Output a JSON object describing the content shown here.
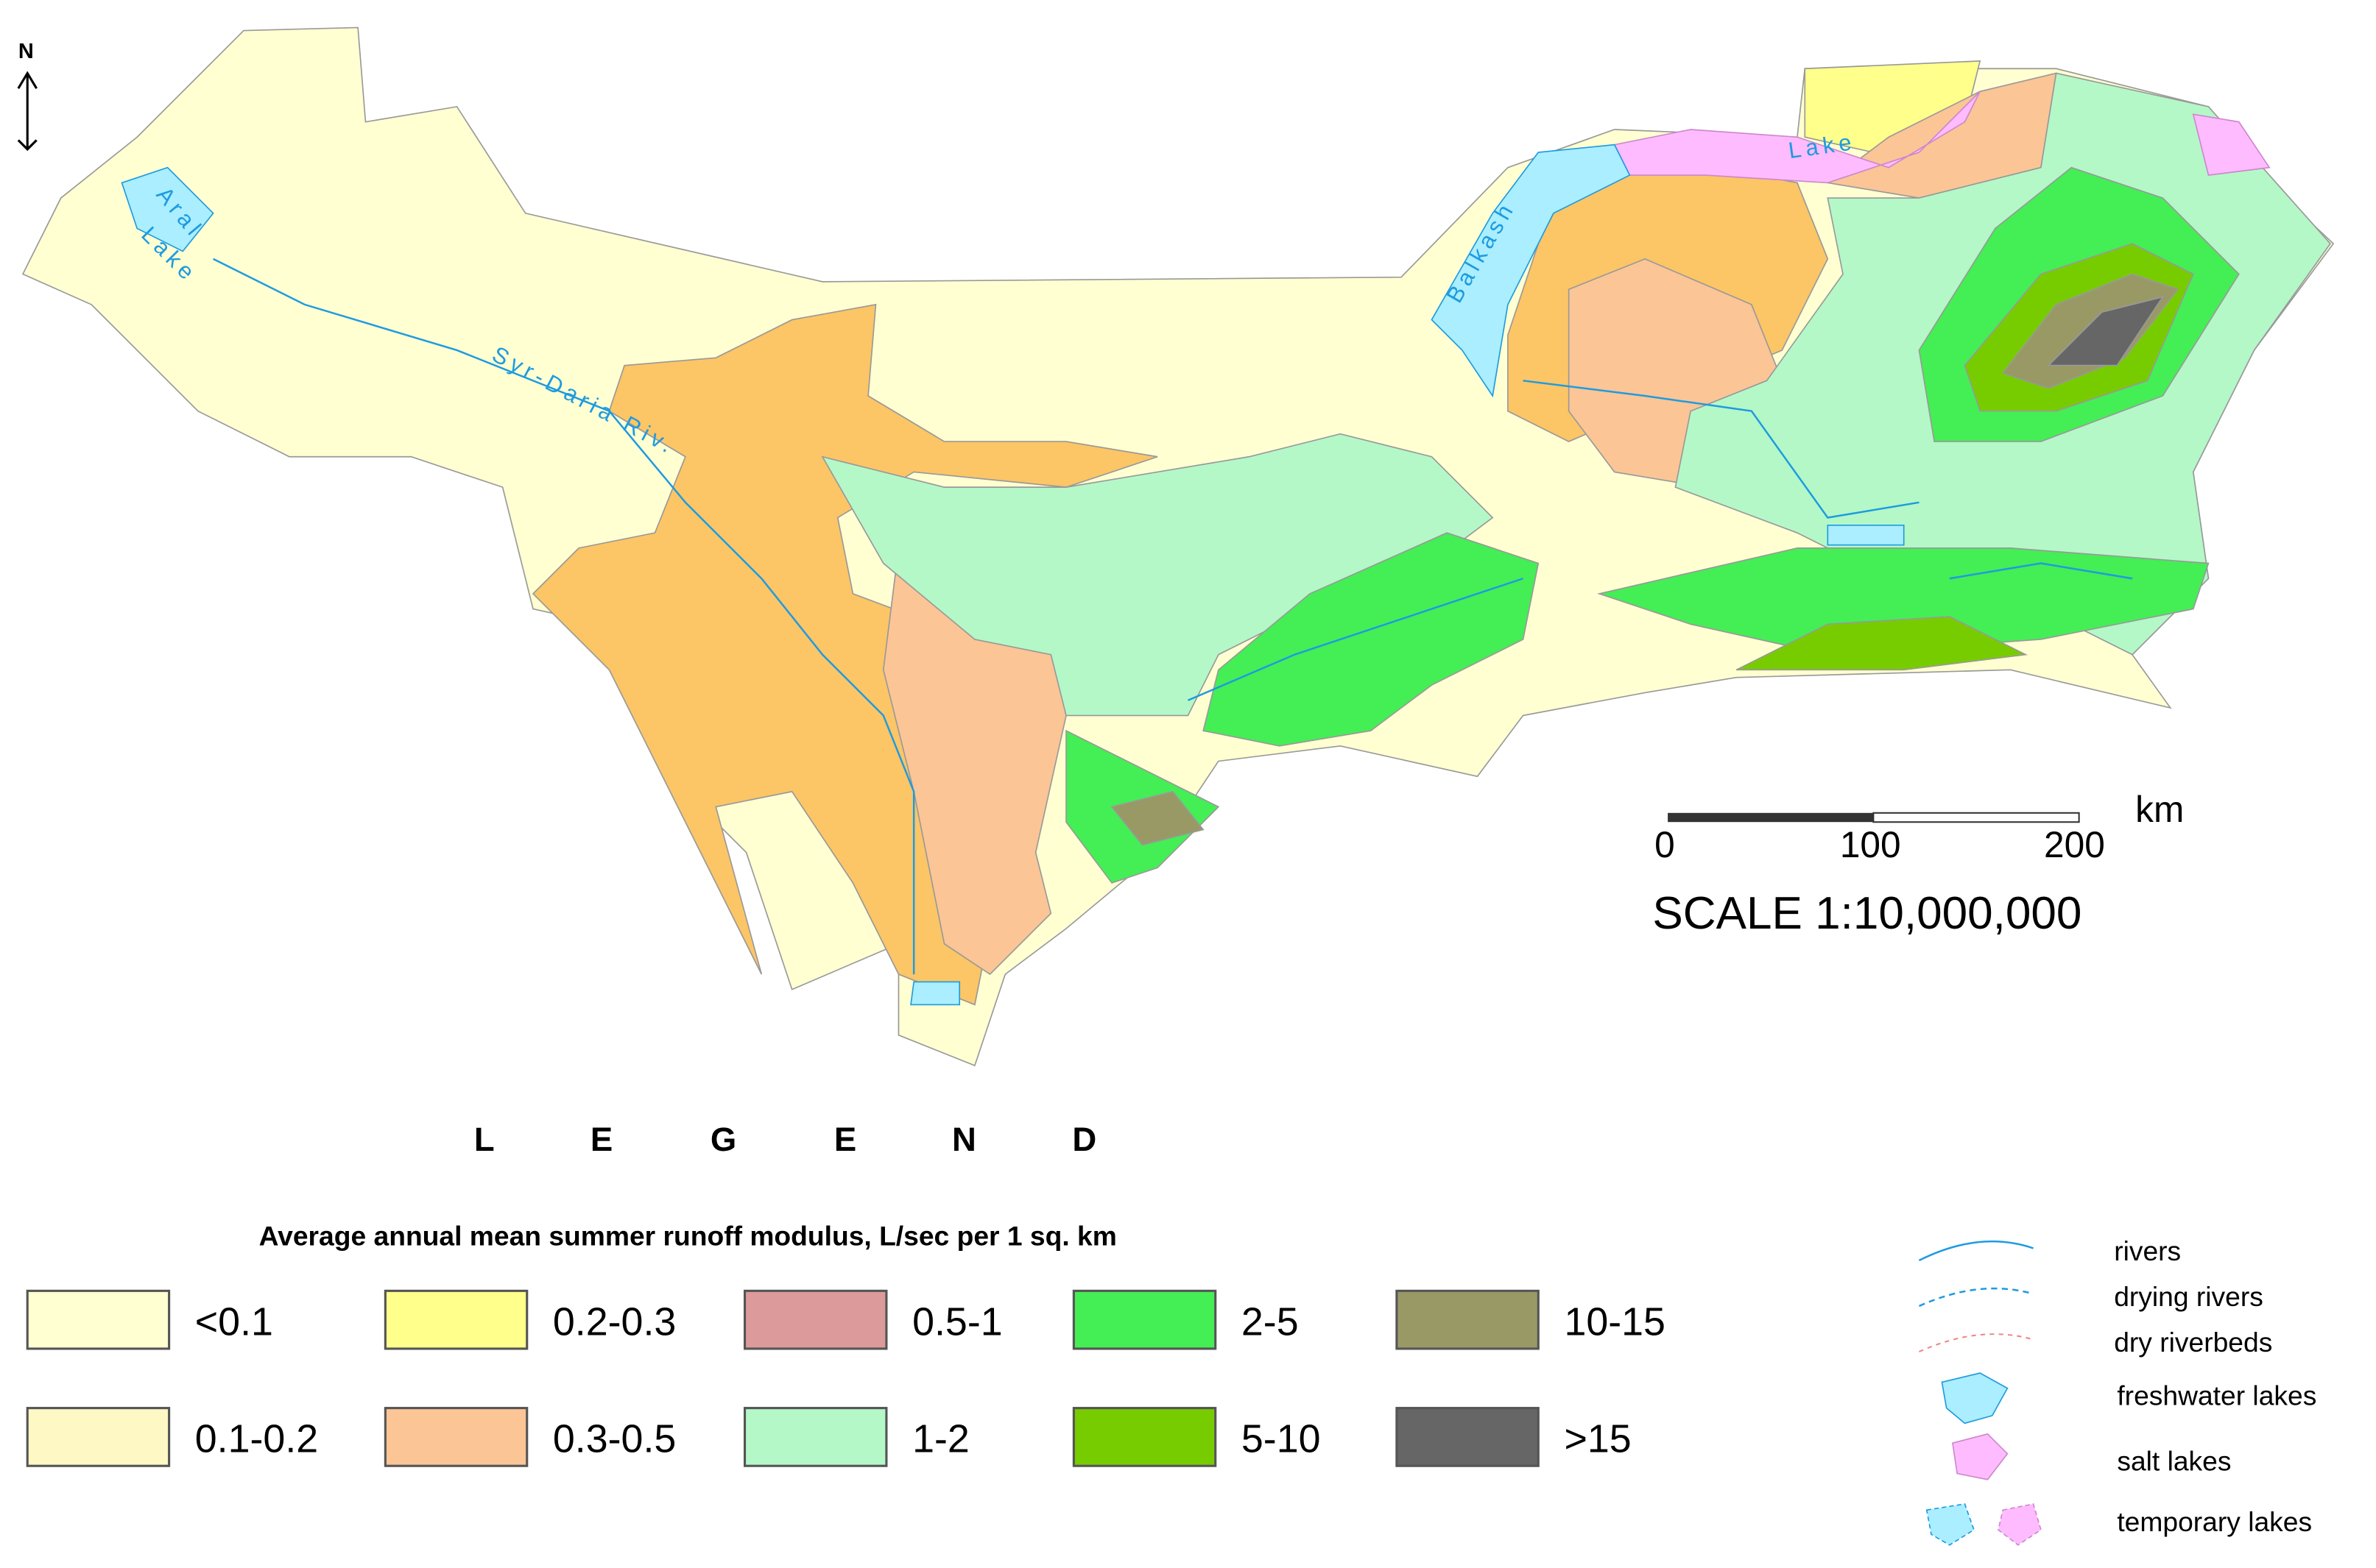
{
  "map": {
    "north": "N",
    "labels": [
      "Aral",
      "Lake",
      "Syr-Daria Riv.",
      "Balkash",
      "Lake"
    ]
  },
  "scale": {
    "ticks": [
      "0",
      "100",
      "200"
    ],
    "unit": "km",
    "text": "SCALE 1:10,000,000"
  },
  "legend": {
    "heading": [
      "L",
      "E",
      "G",
      "E",
      "N",
      "D"
    ],
    "title": "Average annual mean summer runoff modulus, L/sec per 1 sq. km",
    "classes": [
      {
        "label": "<0.1",
        "color": "#ffffd2"
      },
      {
        "label": "0.1-0.2",
        "color": "#fdf8c4"
      },
      {
        "label": "0.2-0.3",
        "color": "#ffff8c"
      },
      {
        "label": "0.3-0.5",
        "color": "#fbc596"
      },
      {
        "label": "0.5-1",
        "color": "#dd9a9a"
      },
      {
        "label": "1-2",
        "color": "#b4f8c8"
      },
      {
        "label": "2-5",
        "color": "#44ee55"
      },
      {
        "label": "5-10",
        "color": "#77cc00"
      },
      {
        "label": "10-15",
        "color": "#999966"
      },
      {
        "label": ">15",
        "color": "#666666"
      }
    ],
    "symbols": [
      "rivers",
      "drying rivers",
      "dry riverbeds",
      "freshwater lakes",
      "salt lakes",
      "temporary lakes"
    ]
  }
}
